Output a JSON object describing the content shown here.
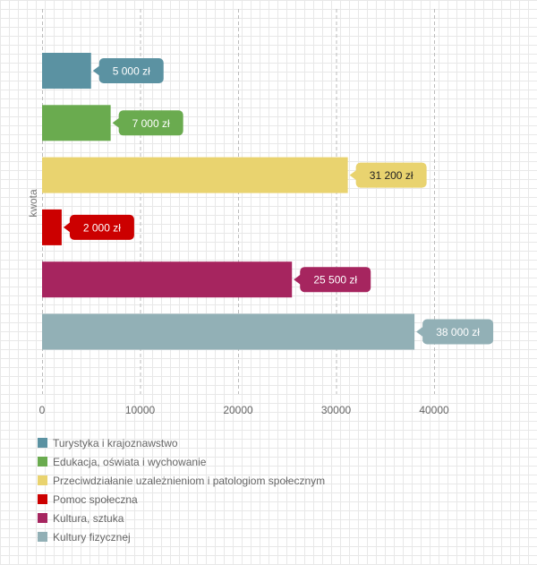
{
  "chart_data": {
    "type": "bar",
    "orientation": "horizontal",
    "ylabel": "kwota",
    "xlim": [
      0,
      40000
    ],
    "x_ticks": [
      0,
      10000,
      20000,
      30000,
      40000
    ],
    "grid": true,
    "legend_position": "bottom-left",
    "value_unit": "zł",
    "categories": [
      "Turystyka i krajoznawstwo",
      "Edukacja, oświata i wychowanie",
      "Przeciwdziałanie uzależnieniom i patologiom społecznym",
      "Pomoc społeczna",
      "Kultura, sztuka",
      "Kultury fizycznej"
    ],
    "values": [
      5000,
      7000,
      31200,
      2000,
      25500,
      38000
    ],
    "data_labels": [
      "5 000 zł",
      "7 000 zł",
      "31 200 zł",
      "2 000 zł",
      "25 500 zł",
      "38 000 zł"
    ],
    "colors": [
      "#5b92a2",
      "#6aab4f",
      "#e9d36f",
      "#cc0000",
      "#a6255f",
      "#92b0b6"
    ],
    "label_text_colors": [
      "#ffffff",
      "#ffffff",
      "#222222",
      "#ffffff",
      "#ffffff",
      "#ffffff"
    ]
  }
}
